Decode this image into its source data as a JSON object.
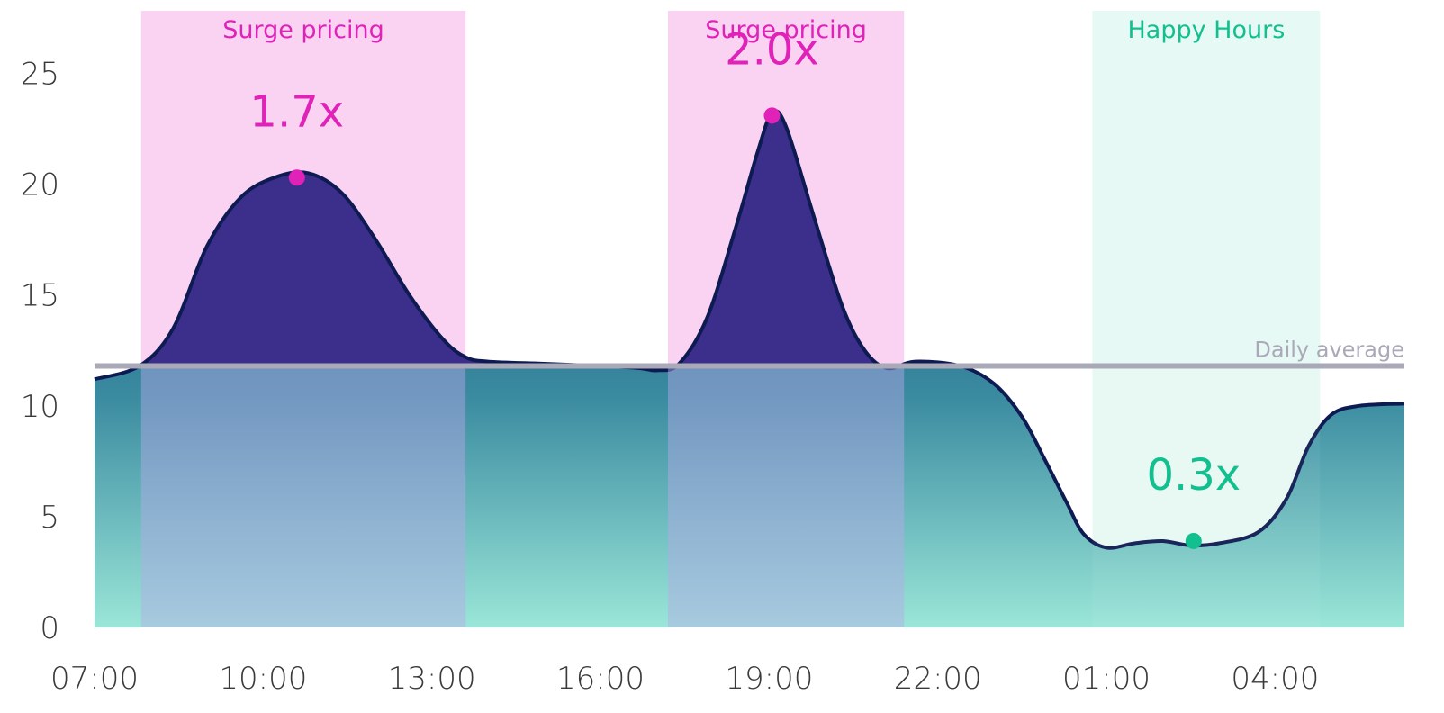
{
  "chart_data": {
    "type": "area",
    "title": "",
    "xlabel": "",
    "ylabel": "",
    "ylim": [
      0,
      27.5
    ],
    "y_ticks": [
      "0",
      "5",
      "10",
      "15",
      "20",
      "25"
    ],
    "x_ticks": [
      "07:00",
      "10:00",
      "13:00",
      "16:00",
      "19:00",
      "22:00",
      "01:00",
      "04:00"
    ],
    "x_range_hours": [
      7,
      30.3
    ],
    "grid": false,
    "series": [
      {
        "points": [
          [
            7.0,
            11.2
          ],
          [
            7.8,
            11.8
          ],
          [
            8.4,
            13.5
          ],
          [
            9.0,
            17.2
          ],
          [
            9.6,
            19.4
          ],
          [
            10.2,
            20.3
          ],
          [
            10.8,
            20.5
          ],
          [
            11.4,
            19.6
          ],
          [
            12.0,
            17.5
          ],
          [
            12.6,
            15.0
          ],
          [
            13.2,
            13.0
          ],
          [
            13.6,
            12.2
          ],
          [
            14.0,
            12.0
          ],
          [
            15.0,
            11.9
          ],
          [
            16.0,
            11.8
          ],
          [
            16.7,
            11.7
          ],
          [
            17.0,
            11.6
          ],
          [
            17.4,
            11.9
          ],
          [
            17.9,
            14.0
          ],
          [
            18.4,
            18.0
          ],
          [
            18.8,
            21.5
          ],
          [
            19.05,
            23.2
          ],
          [
            19.3,
            22.6
          ],
          [
            19.8,
            18.5
          ],
          [
            20.3,
            14.5
          ],
          [
            20.7,
            12.5
          ],
          [
            21.1,
            11.7
          ],
          [
            21.6,
            12.0
          ],
          [
            22.4,
            11.8
          ],
          [
            23.0,
            11.0
          ],
          [
            23.5,
            9.5
          ],
          [
            23.9,
            7.6
          ],
          [
            24.3,
            5.6
          ],
          [
            24.6,
            4.2
          ],
          [
            25.0,
            3.6
          ],
          [
            25.5,
            3.8
          ],
          [
            26.0,
            3.9
          ],
          [
            26.5,
            3.7
          ],
          [
            27.0,
            3.8
          ],
          [
            27.7,
            4.3
          ],
          [
            28.2,
            5.8
          ],
          [
            28.6,
            8.2
          ],
          [
            29.0,
            9.6
          ],
          [
            29.5,
            10.0
          ],
          [
            30.3,
            10.1
          ]
        ]
      }
    ],
    "reference_line": {
      "label": "Daily average",
      "value": 11.8
    },
    "zones": [
      {
        "label": "Surge pricing",
        "start": 7.83,
        "end": 13.6,
        "color": "#e022b8"
      },
      {
        "label": "Surge pricing",
        "start": 17.2,
        "end": 21.4,
        "color": "#e022b8"
      },
      {
        "label": "Happy Hours",
        "start": 24.75,
        "end": 28.8,
        "color": "#12c08f"
      }
    ],
    "annotations": [
      {
        "label": "1.7x",
        "x": 10.6,
        "y": 20.3,
        "color": "#e022b8"
      },
      {
        "label": "2.0x",
        "x": 19.05,
        "y": 23.1,
        "color": "#e022b8"
      },
      {
        "label": "0.3x",
        "x": 26.55,
        "y": 3.9,
        "color": "#12c08f"
      }
    ],
    "colors": {
      "fill_above_average": "#3c2f8c",
      "fill_top": "#0a4a74",
      "fill_bottom": "#9ae6d8",
      "outline": "#0e1b52",
      "surge": "#e022b8",
      "happy": "#12c08f",
      "average_line": "#a9a9b8"
    }
  }
}
